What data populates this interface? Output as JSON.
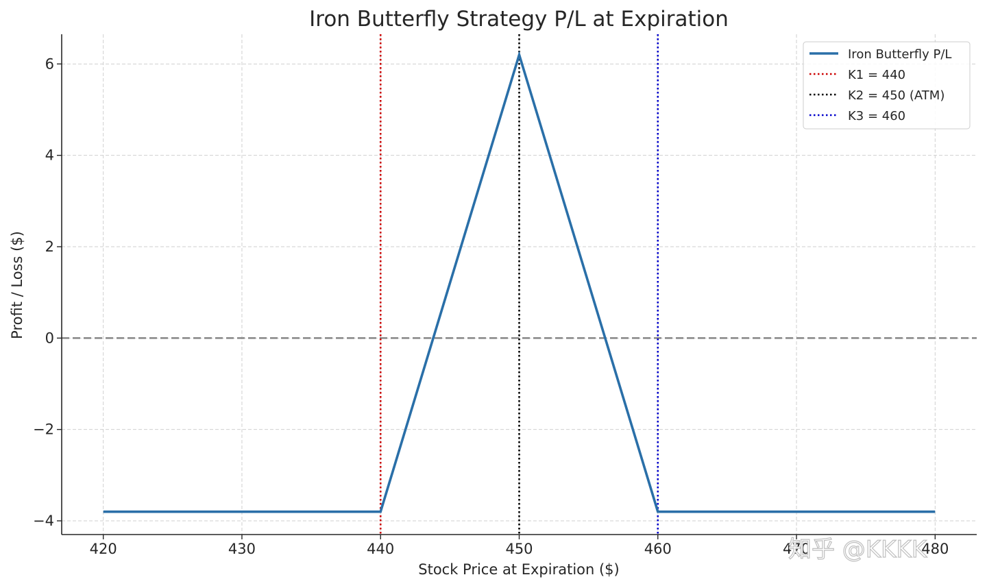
{
  "chart_data": {
    "type": "line",
    "title": "Iron Butterfly Strategy P/L at Expiration",
    "xlabel": "Stock Price at Expiration ($)",
    "ylabel": "Profit / Loss ($)",
    "xlim": [
      417,
      483
    ],
    "ylim": [
      -4.3,
      6.65
    ],
    "x_ticks": [
      420,
      430,
      440,
      450,
      460,
      470,
      480
    ],
    "y_ticks": [
      -4,
      -2,
      0,
      2,
      4,
      6
    ],
    "y_tick_labels": [
      "−4",
      "−2",
      "0",
      "2",
      "4",
      "6"
    ],
    "grid": true,
    "legend_position": "top-right",
    "series": [
      {
        "name": "Iron Butterfly P/L",
        "style": "solid",
        "color": "#2a6fa8",
        "x": [
          420,
          440,
          450,
          460,
          480
        ],
        "y": [
          -3.8,
          -3.8,
          6.2,
          -3.8,
          -3.8
        ]
      }
    ],
    "vertical_lines": [
      {
        "name": "K1 = 440",
        "x": 440,
        "color": "#cc0000",
        "style": "dotted"
      },
      {
        "name": "K2 = 450 (ATM)",
        "x": 450,
        "color": "#000000",
        "style": "dotted"
      },
      {
        "name": "K3 = 460",
        "x": 460,
        "color": "#0000cc",
        "style": "dotted"
      }
    ],
    "horizontal_lines": [
      {
        "y": 0,
        "color": "#808080",
        "style": "dashed"
      }
    ]
  },
  "watermark": "知乎 @KKKK"
}
